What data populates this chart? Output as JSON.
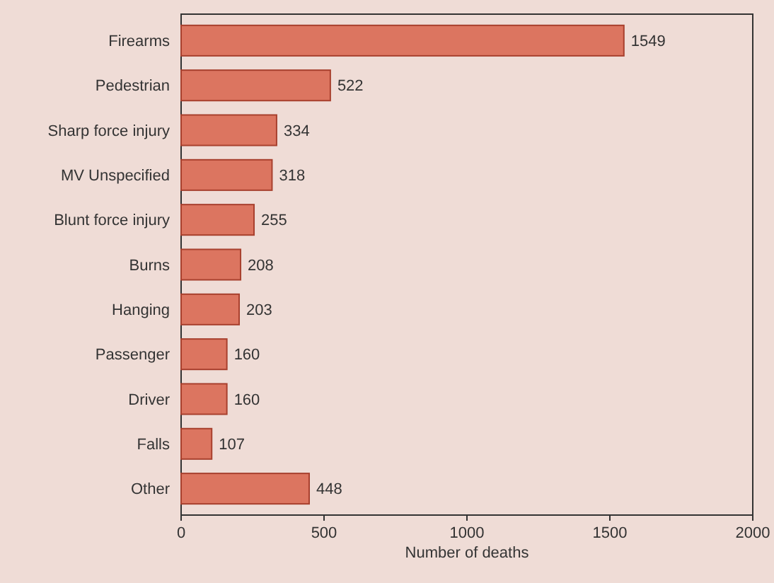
{
  "chart_data": {
    "type": "bar",
    "orientation": "horizontal",
    "categories": [
      "Firearms",
      "Pedestrian",
      "Sharp force injury",
      "MV Unspecified",
      "Blunt force injury",
      "Burns",
      "Hanging",
      "Passenger",
      "Driver",
      "Falls",
      "Other"
    ],
    "values": [
      1549,
      522,
      334,
      318,
      255,
      208,
      203,
      160,
      160,
      107,
      448
    ],
    "color": "#dc7560",
    "xlabel": "Number of deaths",
    "xlim": [
      0,
      2000
    ],
    "xticks": [
      0,
      500,
      1000,
      1500,
      2000
    ],
    "data_labels": true
  }
}
